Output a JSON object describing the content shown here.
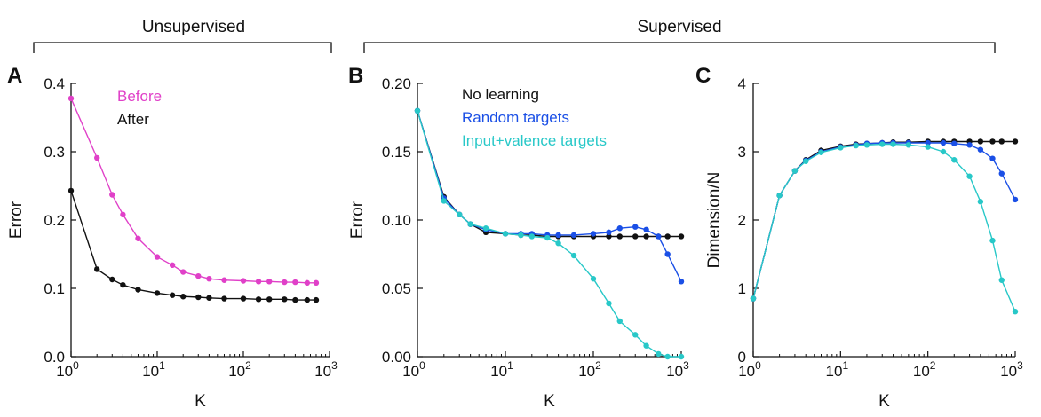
{
  "header": {
    "unsupervised": "Unsupervised",
    "supervised": "Supervised"
  },
  "colors": {
    "before": "#e040c8",
    "after": "#111111",
    "no_learning": "#111111",
    "random_targets": "#1a4fe6",
    "input_valence_targets": "#28c8c8"
  },
  "chart_data": [
    {
      "panel": "A",
      "type": "line",
      "xscale": "log",
      "xlim": [
        1,
        1000
      ],
      "ylim": [
        0,
        0.4
      ],
      "xlabel": "K",
      "ylabel": "Error",
      "yticks": [
        "0.0",
        "0.1",
        "0.2",
        "0.3",
        "0.4"
      ],
      "xticks": [
        "10^0",
        "10^1",
        "10^2",
        "10^3"
      ],
      "legend_placement": "top-left",
      "series": [
        {
          "name": "Before",
          "color": "#e040c8",
          "x": [
            1,
            2,
            3,
            4,
            6,
            10,
            15,
            20,
            30,
            40,
            60,
            100,
            150,
            200,
            300,
            400,
            550,
            700
          ],
          "y": [
            0.378,
            0.291,
            0.237,
            0.208,
            0.173,
            0.146,
            0.134,
            0.124,
            0.118,
            0.114,
            0.112,
            0.111,
            0.11,
            0.11,
            0.109,
            0.109,
            0.108,
            0.108
          ]
        },
        {
          "name": "After",
          "color": "#111111",
          "x": [
            1,
            2,
            3,
            4,
            6,
            10,
            15,
            20,
            30,
            40,
            60,
            100,
            150,
            200,
            300,
            400,
            550,
            700
          ],
          "y": [
            0.243,
            0.128,
            0.113,
            0.105,
            0.098,
            0.093,
            0.09,
            0.088,
            0.087,
            0.086,
            0.085,
            0.085,
            0.084,
            0.084,
            0.084,
            0.083,
            0.083,
            0.083
          ]
        }
      ]
    },
    {
      "panel": "B",
      "type": "line",
      "xscale": "log",
      "xlim": [
        1,
        1000
      ],
      "ylim": [
        0,
        0.2
      ],
      "xlabel": "K",
      "ylabel": "Error",
      "yticks": [
        "0.00",
        "0.05",
        "0.10",
        "0.15",
        "0.20"
      ],
      "xticks": [
        "10^0",
        "10^1",
        "10^2",
        "10^3"
      ],
      "legend_placement": "top",
      "series": [
        {
          "name": "No learning",
          "color": "#111111",
          "x": [
            1,
            2,
            3,
            4,
            6,
            10,
            15,
            20,
            30,
            40,
            60,
            100,
            150,
            200,
            300,
            400,
            550,
            700,
            1000
          ],
          "y": [
            0.18,
            0.117,
            0.104,
            0.097,
            0.091,
            0.09,
            0.089,
            0.089,
            0.088,
            0.088,
            0.088,
            0.088,
            0.088,
            0.088,
            0.088,
            0.088,
            0.088,
            0.088,
            0.088
          ]
        },
        {
          "name": "Random targets",
          "color": "#1a4fe6",
          "x": [
            1,
            2,
            3,
            4,
            6,
            10,
            15,
            20,
            30,
            40,
            60,
            100,
            150,
            200,
            300,
            400,
            550,
            700,
            1000
          ],
          "y": [
            0.18,
            0.116,
            0.104,
            0.097,
            0.093,
            0.09,
            0.09,
            0.09,
            0.089,
            0.089,
            0.089,
            0.09,
            0.091,
            0.094,
            0.095,
            0.093,
            0.088,
            0.075,
            0.055
          ]
        },
        {
          "name": "Input+valence targets",
          "color": "#28c8c8",
          "x": [
            1,
            2,
            3,
            4,
            6,
            10,
            15,
            20,
            30,
            40,
            60,
            100,
            150,
            200,
            300,
            400,
            550,
            700,
            1000
          ],
          "y": [
            0.18,
            0.114,
            0.104,
            0.097,
            0.094,
            0.09,
            0.089,
            0.088,
            0.087,
            0.083,
            0.074,
            0.057,
            0.039,
            0.026,
            0.016,
            0.008,
            0.002,
            0.0,
            0.0
          ]
        }
      ]
    },
    {
      "panel": "C",
      "type": "line",
      "xscale": "log",
      "xlim": [
        1,
        1000
      ],
      "ylim": [
        0,
        4
      ],
      "xlabel": "K",
      "ylabel": "Dimension/N",
      "yticks": [
        "0",
        "1",
        "2",
        "3",
        "4"
      ],
      "xticks": [
        "10^0",
        "10^1",
        "10^2",
        "10^3"
      ],
      "series": [
        {
          "name": "No learning",
          "color": "#111111",
          "x": [
            1,
            2,
            3,
            4,
            6,
            10,
            15,
            20,
            30,
            40,
            60,
            100,
            150,
            200,
            300,
            400,
            550,
            700,
            1000
          ],
          "y": [
            0.85,
            2.36,
            2.72,
            2.88,
            3.02,
            3.08,
            3.11,
            3.12,
            3.13,
            3.14,
            3.14,
            3.15,
            3.15,
            3.15,
            3.15,
            3.15,
            3.15,
            3.15,
            3.15
          ]
        },
        {
          "name": "Random targets",
          "color": "#1a4fe6",
          "x": [
            1,
            2,
            3,
            4,
            6,
            10,
            15,
            20,
            30,
            40,
            60,
            100,
            150,
            200,
            300,
            400,
            550,
            700,
            1000
          ],
          "y": [
            0.85,
            2.36,
            2.72,
            2.87,
            3.0,
            3.07,
            3.1,
            3.12,
            3.13,
            3.13,
            3.13,
            3.13,
            3.13,
            3.12,
            3.1,
            3.03,
            2.9,
            2.68,
            2.3
          ]
        },
        {
          "name": "Input+valence targets",
          "color": "#28c8c8",
          "x": [
            1,
            2,
            3,
            4,
            6,
            10,
            15,
            20,
            30,
            40,
            60,
            100,
            150,
            200,
            300,
            400,
            550,
            700,
            1000
          ],
          "y": [
            0.85,
            2.36,
            2.72,
            2.86,
            2.99,
            3.06,
            3.09,
            3.1,
            3.11,
            3.11,
            3.1,
            3.07,
            3.0,
            2.88,
            2.64,
            2.27,
            1.7,
            1.12,
            0.66
          ]
        }
      ]
    }
  ]
}
